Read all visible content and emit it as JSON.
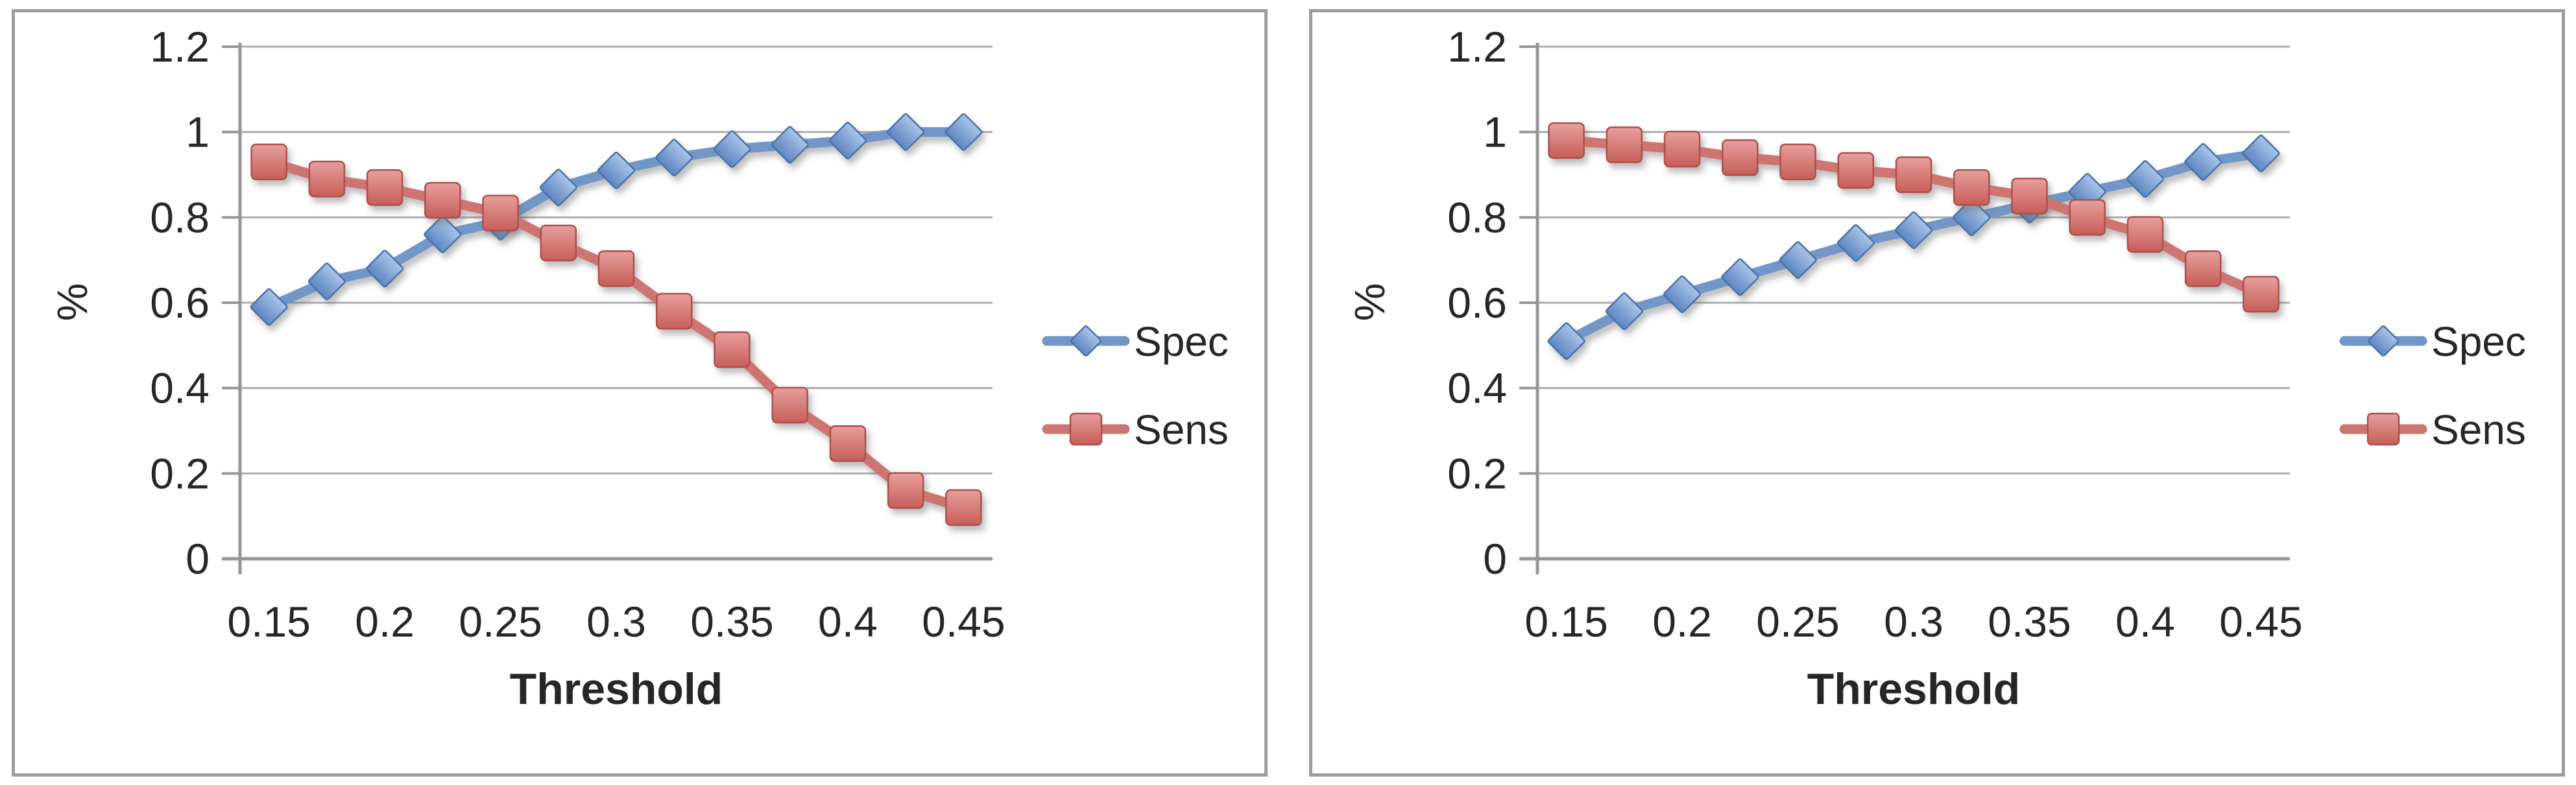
{
  "styles": {
    "background": "#FFFFFF",
    "panel_border_color": "#9C9C9C",
    "grid_color": "#ACACAC",
    "axis_color": "#969696",
    "text_color": "#262626",
    "shadow_color": "#6B6B6B",
    "spec": {
      "line": "#7396C9",
      "marker_top": "#A9C4E7",
      "marker_bottom": "#5E86C2",
      "marker_edge": "#4A72A8"
    },
    "sens": {
      "line": "#CE7571",
      "marker_top": "#E79F9C",
      "marker_bottom": "#C75E59",
      "marker_edge": "#AD4F4B"
    }
  },
  "chart_data": [
    {
      "type": "line",
      "title": "",
      "xlabel": "Threshold",
      "ylabel": "%",
      "x": [
        0.15,
        0.175,
        0.2,
        0.225,
        0.25,
        0.275,
        0.3,
        0.325,
        0.35,
        0.375,
        0.4,
        0.425,
        0.45
      ],
      "x_tick_labels": [
        "0.15",
        "0.2",
        "0.25",
        "0.3",
        "0.35",
        "0.4",
        "0.45"
      ],
      "y_tick_labels": [
        "1.2",
        "1",
        "0.8",
        "0.6",
        "0.4",
        "0.2",
        "0"
      ],
      "ylim": [
        0,
        1.2
      ],
      "y_major_step": 0.2,
      "grid": true,
      "legend_position": "right",
      "series": [
        {
          "name": "Spec",
          "marker": "diamond",
          "color_key": "spec",
          "values": [
            0.59,
            0.65,
            0.68,
            0.76,
            0.79,
            0.87,
            0.91,
            0.94,
            0.96,
            0.97,
            0.98,
            1.0,
            1.0
          ]
        },
        {
          "name": "Sens",
          "marker": "square",
          "color_key": "sens",
          "values": [
            0.93,
            0.89,
            0.87,
            0.84,
            0.81,
            0.74,
            0.68,
            0.58,
            0.49,
            0.36,
            0.27,
            0.16,
            0.12
          ]
        }
      ]
    },
    {
      "type": "line",
      "title": "",
      "xlabel": "Threshold",
      "ylabel": "%",
      "x": [
        0.15,
        0.175,
        0.2,
        0.225,
        0.25,
        0.275,
        0.3,
        0.325,
        0.35,
        0.375,
        0.4,
        0.425,
        0.45
      ],
      "x_tick_labels": [
        "0.15",
        "0.2",
        "0.25",
        "0.3",
        "0.35",
        "0.4",
        "0.45"
      ],
      "y_tick_labels": [
        "1.2",
        "1",
        "0.8",
        "0.6",
        "0.4",
        "0.2",
        "0"
      ],
      "ylim": [
        0,
        1.2
      ],
      "y_major_step": 0.2,
      "grid": true,
      "legend_position": "right",
      "series": [
        {
          "name": "Spec",
          "marker": "diamond",
          "color_key": "spec",
          "values": [
            0.51,
            0.58,
            0.62,
            0.66,
            0.7,
            0.74,
            0.77,
            0.8,
            0.83,
            0.86,
            0.89,
            0.93,
            0.95
          ]
        },
        {
          "name": "Sens",
          "marker": "square",
          "color_key": "sens",
          "values": [
            0.98,
            0.97,
            0.96,
            0.94,
            0.93,
            0.91,
            0.9,
            0.87,
            0.85,
            0.8,
            0.76,
            0.68,
            0.62
          ]
        }
      ]
    }
  ]
}
